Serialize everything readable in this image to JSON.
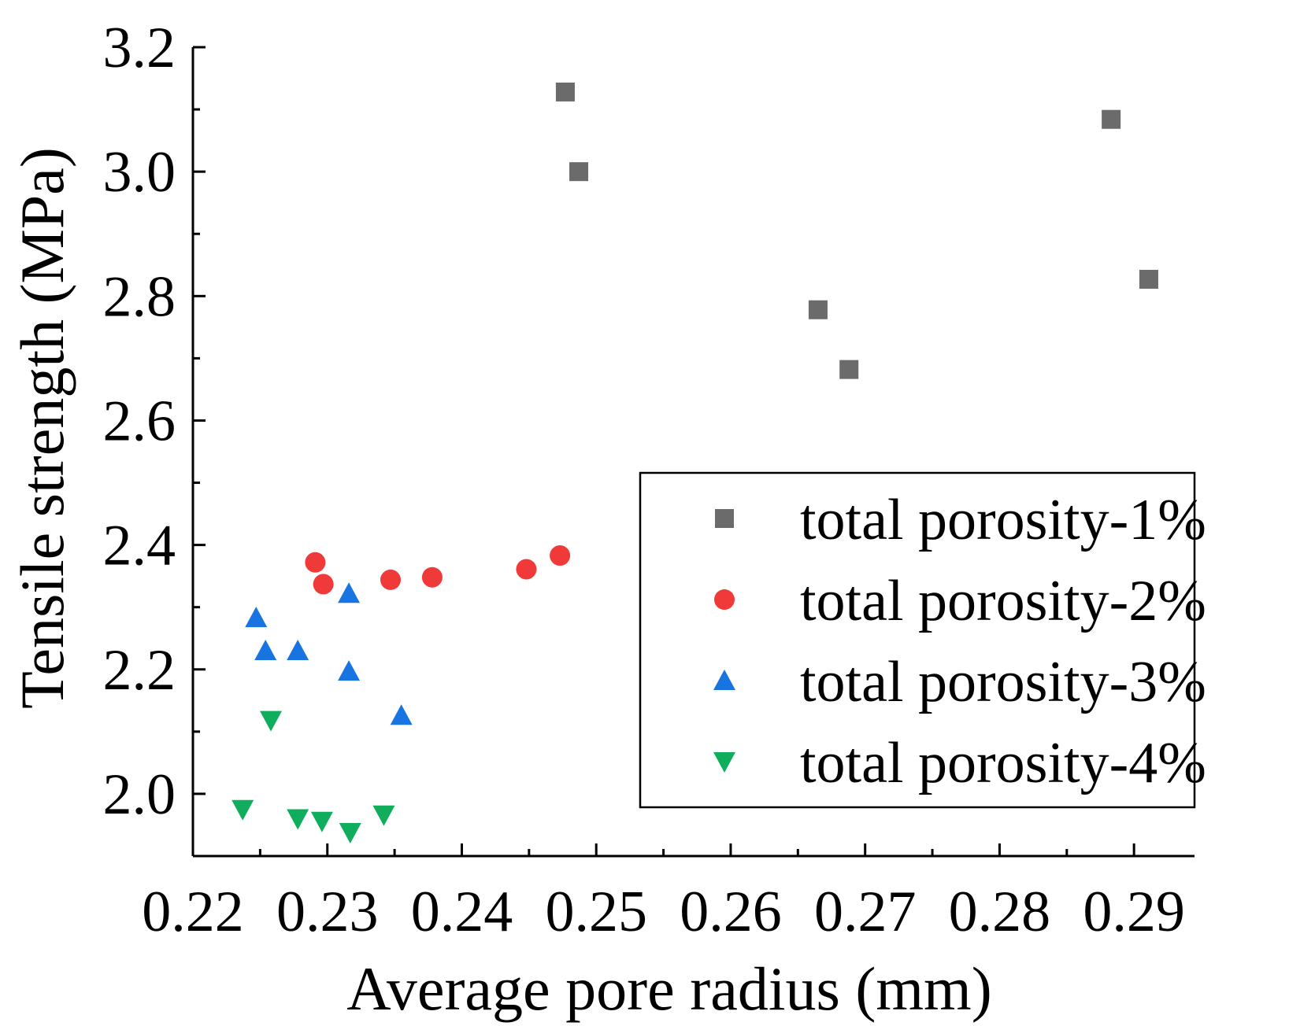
{
  "chart_data": {
    "type": "scatter",
    "title": "",
    "xlabel": "Average pore radius (mm)",
    "ylabel": "Tensile strength (MPa)",
    "xlim": [
      0.22,
      0.2945
    ],
    "ylim": [
      1.9,
      3.2
    ],
    "xticks": [
      0.22,
      0.23,
      0.24,
      0.25,
      0.26,
      0.27,
      0.28,
      0.29
    ],
    "xtick_labels": [
      "0.22",
      "0.23",
      "0.24",
      "0.25",
      "0.26",
      "0.27",
      "0.28",
      "0.29"
    ],
    "yticks": [
      2.0,
      2.2,
      2.4,
      2.6,
      2.8,
      3.0,
      3.2
    ],
    "ytick_labels": [
      "2.0",
      "2.2",
      "2.4",
      "2.6",
      "2.8",
      "3.0",
      "3.2"
    ],
    "grid": false,
    "legend_position": "right",
    "series": [
      {
        "name": "total porosity-1%",
        "marker": "square",
        "color": "#6b6b6b",
        "x": [
          0.2477,
          0.2487,
          0.2665,
          0.2688,
          0.2883,
          0.2911
        ],
        "y": [
          3.128,
          3.0,
          2.778,
          2.682,
          3.084,
          2.827
        ]
      },
      {
        "name": "total porosity-2%",
        "marker": "circle",
        "color": "#f03a3a",
        "x": [
          0.2291,
          0.2297,
          0.2347,
          0.2378,
          0.2448,
          0.2473
        ],
        "y": [
          2.372,
          2.337,
          2.344,
          2.348,
          2.361,
          2.383
        ]
      },
      {
        "name": "total porosity-3%",
        "marker": "triangle-up",
        "color": "#1874e0",
        "x": [
          0.2247,
          0.2254,
          0.2278,
          0.2316,
          0.2316,
          0.2355
        ],
        "y": [
          2.283,
          2.23,
          2.23,
          2.322,
          2.197,
          2.126
        ]
      },
      {
        "name": "total porosity-4%",
        "marker": "triangle-down",
        "color": "#10ad5c",
        "x": [
          0.2237,
          0.2258,
          0.2278,
          0.2296,
          0.2317,
          0.2342
        ],
        "y": [
          1.975,
          2.118,
          1.96,
          1.956,
          1.938,
          1.966
        ]
      }
    ]
  }
}
